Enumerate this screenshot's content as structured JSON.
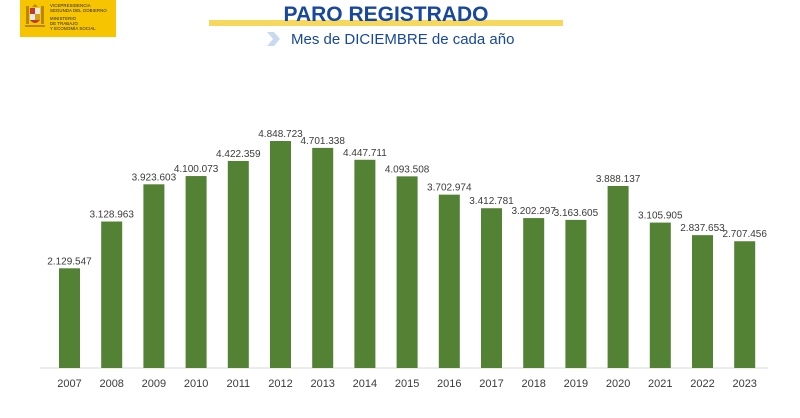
{
  "logo": {
    "lines": [
      "VICEPRESIDENCIA",
      "SEGUNDA DEL GOBIERNO",
      "MINISTERIO",
      "DE TRABAJO",
      "Y ECONOMÍA SOCIAL"
    ]
  },
  "header": {
    "title": "PARO REGISTRADO",
    "subtitle": "Mes de DICIEMBRE de cada año"
  },
  "colors": {
    "bar": "#548235",
    "title": "#17479e",
    "accent": "#f6d85c",
    "logo_bg": "#f6c400"
  },
  "chart_data": {
    "type": "bar",
    "title": "PARO REGISTRADO",
    "subtitle": "Mes de DICIEMBRE de cada año",
    "categories": [
      "2007",
      "2008",
      "2009",
      "2010",
      "2011",
      "2012",
      "2013",
      "2014",
      "2015",
      "2016",
      "2017",
      "2018",
      "2019",
      "2020",
      "2021",
      "2022",
      "2023"
    ],
    "values": [
      2129547,
      3128963,
      3923603,
      4100073,
      4422359,
      4848723,
      4701338,
      4447711,
      4093508,
      3702974,
      3412781,
      3202297,
      3163605,
      3888137,
      3105905,
      2837653,
      2707456
    ],
    "value_labels": [
      "2.129.547",
      "3.128.963",
      "3.923.603",
      "4.100.073",
      "4.422.359",
      "4.848.723",
      "4.701.338",
      "4.447.711",
      "4.093.508",
      "3.702.974",
      "3.412.781",
      "3.202.297",
      "3.163.605",
      "3.888.137",
      "3.105.905",
      "2.837.653",
      "2.707.456"
    ],
    "ylim": [
      0,
      4848723
    ],
    "grid": false,
    "legend": "none"
  }
}
